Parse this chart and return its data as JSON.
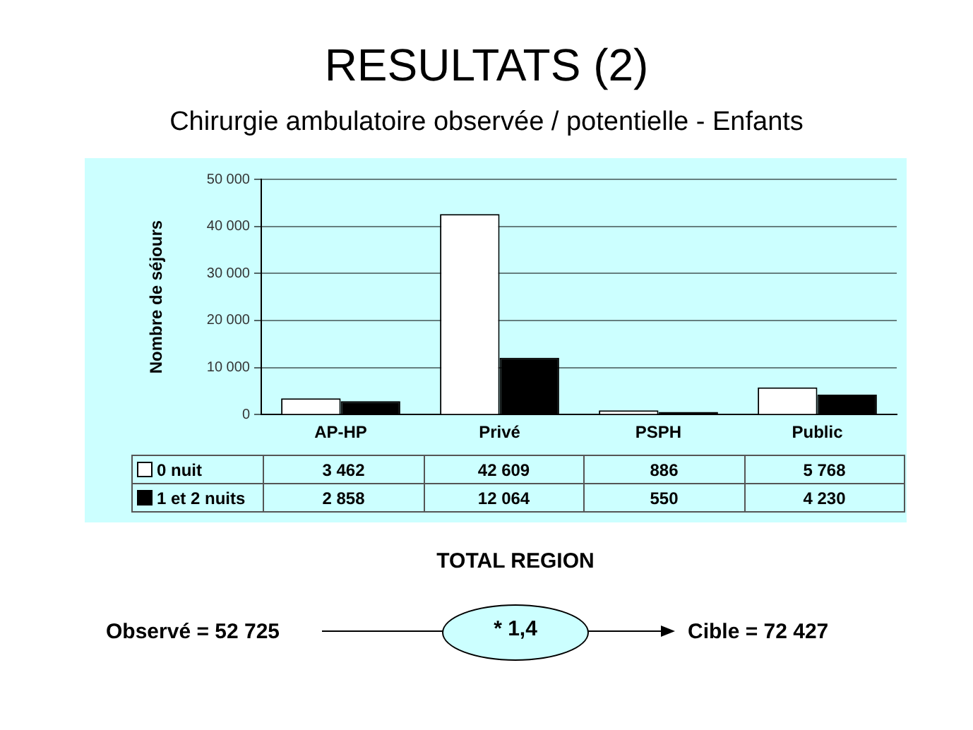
{
  "chart_data": {
    "type": "bar",
    "title": "RESULTATS (2)",
    "subtitle": "Chirurgie ambulatoire observée / potentielle - Enfants",
    "ylabel": "Nombre de séjours",
    "categories": [
      "AP-HP",
      "Privé",
      "PSPH",
      "Public"
    ],
    "series": [
      {
        "name": "0 nuit",
        "color": "#ffffff",
        "values": [
          3462,
          42609,
          886,
          5768
        ],
        "value_labels": [
          "3 462",
          "42 609",
          "886",
          "5 768"
        ]
      },
      {
        "name": "1 et 2 nuits",
        "color": "#000000",
        "values": [
          2858,
          12064,
          550,
          4230
        ],
        "value_labels": [
          "2 858",
          "12 064",
          "550",
          "4 230"
        ]
      }
    ],
    "ylim": [
      0,
      50000
    ],
    "yticks": [
      {
        "value": 0,
        "label": "0"
      },
      {
        "value": 10000,
        "label": "10 000"
      },
      {
        "value": 20000,
        "label": "20 000"
      },
      {
        "value": 30000,
        "label": "30 000"
      },
      {
        "value": 40000,
        "label": "40 000"
      },
      {
        "value": 50000,
        "label": "50 000"
      }
    ],
    "grid": "y",
    "legend": "bottom",
    "annotations": [
      "TOTAL REGION",
      "Observé = 52 725",
      "* 1,4",
      "Cible = 72 427"
    ]
  }
}
